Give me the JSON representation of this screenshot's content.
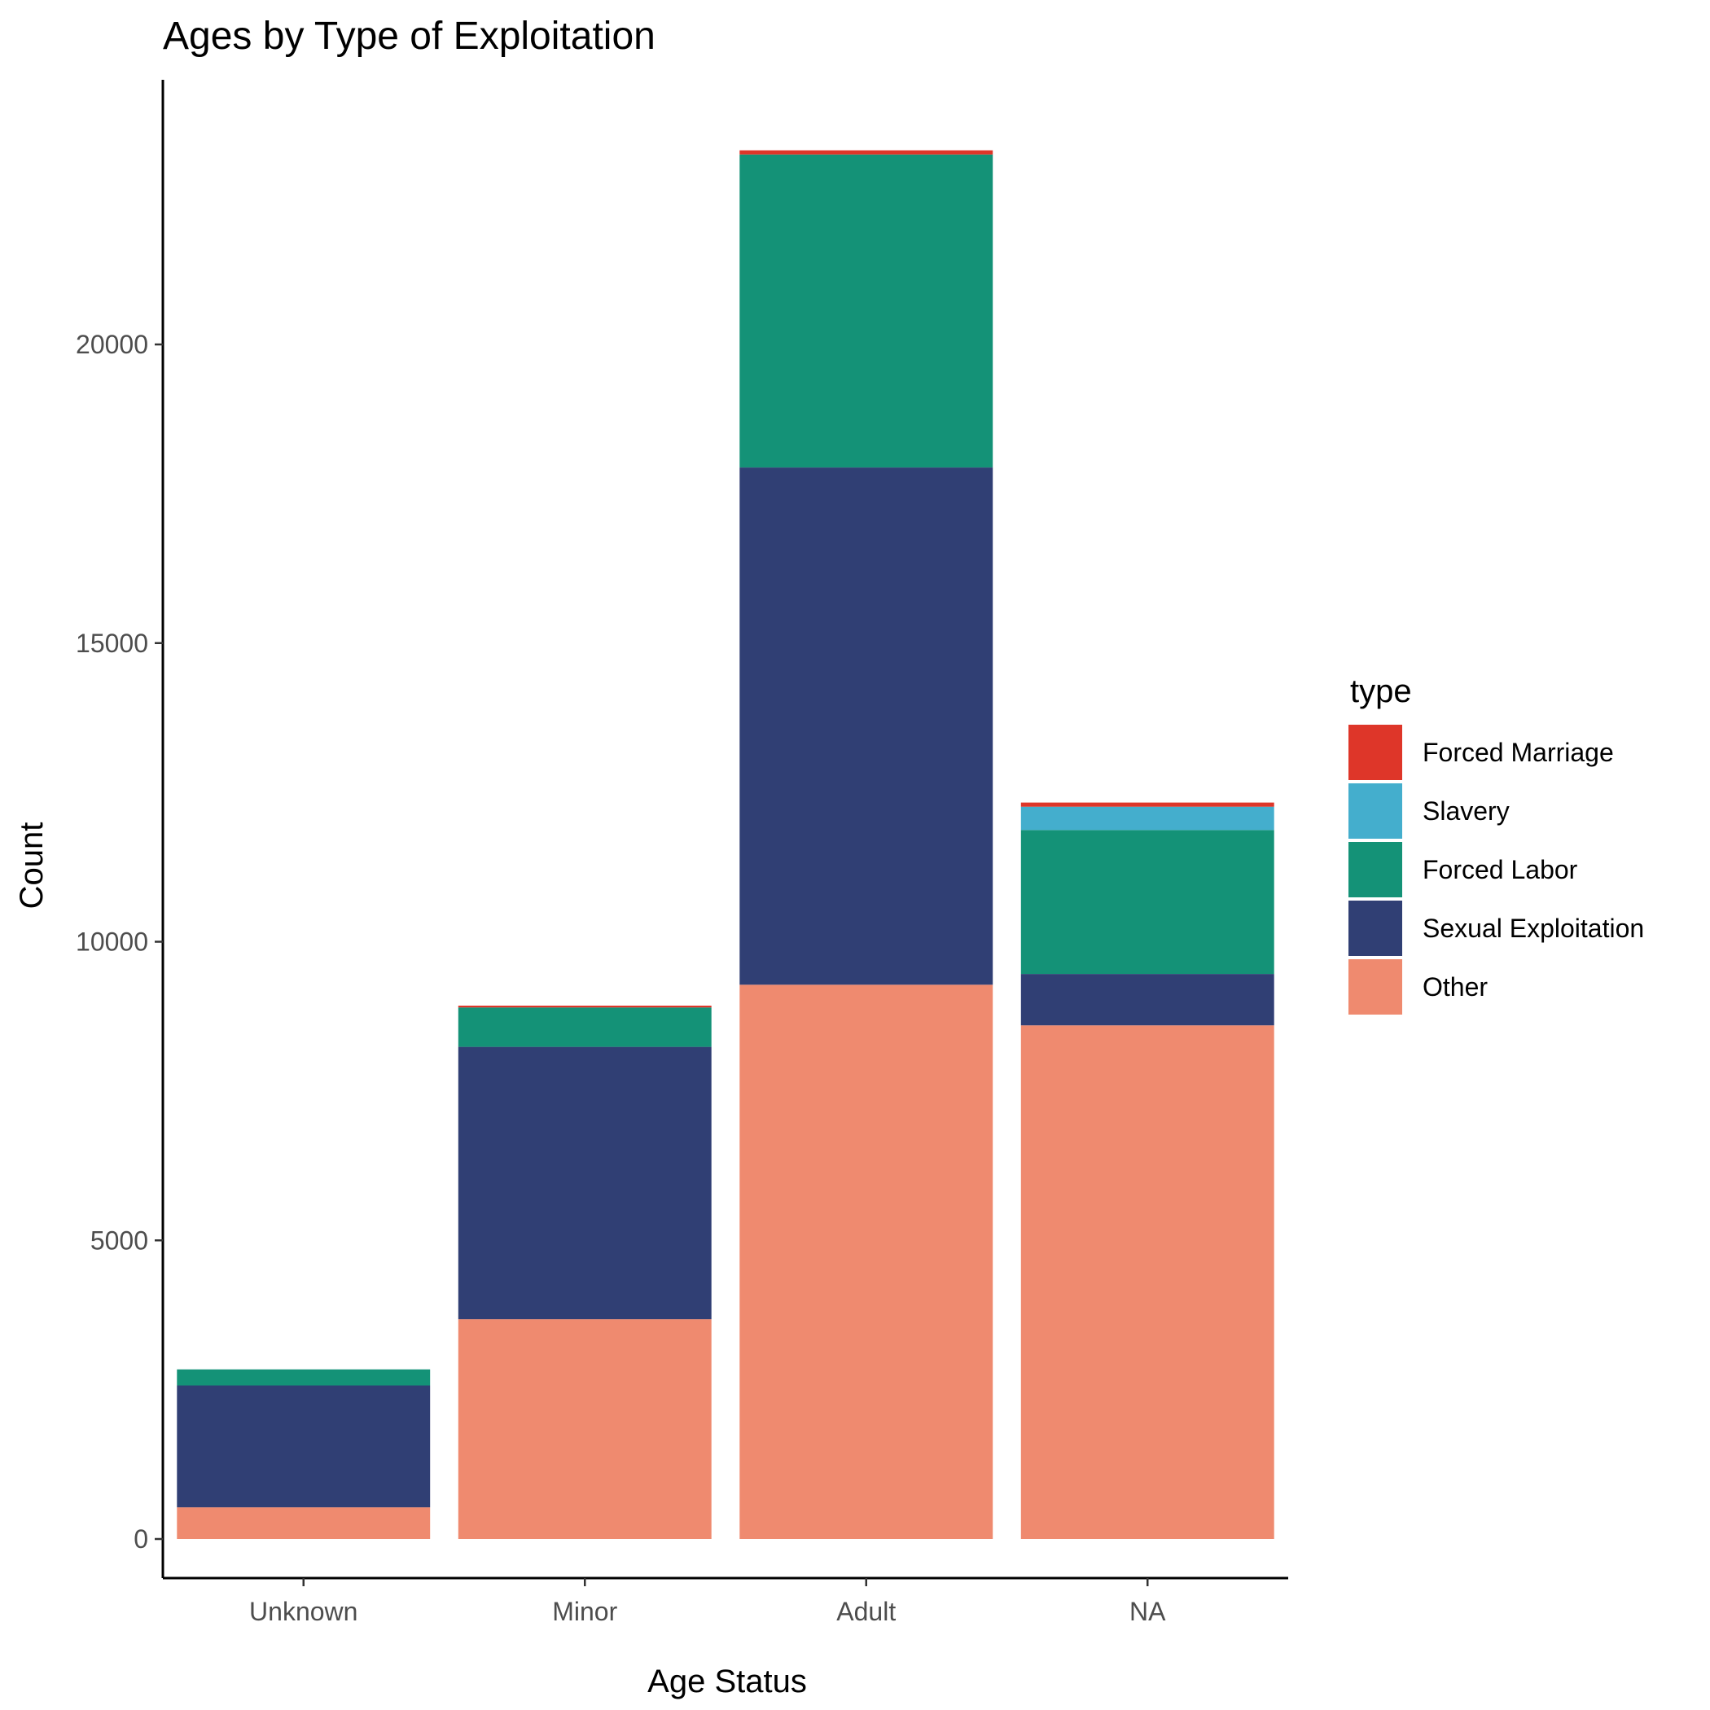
{
  "chart_data": {
    "type": "bar",
    "stacked": true,
    "title": "Ages by Type of Exploitation",
    "xlabel": "Age Status",
    "ylabel": "Count",
    "categories": [
      "Unknown",
      "Minor",
      "Adult",
      "NA"
    ],
    "ylim": [
      -1200,
      24500
    ],
    "yticks": [
      0,
      5000,
      10000,
      15000,
      20000
    ],
    "grid": false,
    "legend": {
      "title": "type",
      "position": "right"
    },
    "series": [
      {
        "name": "Other",
        "color": "#EF8A6F",
        "values": [
          530,
          3680,
          9280,
          8600
        ]
      },
      {
        "name": "Sexual Exploitation",
        "color": "#303F74",
        "values": [
          2040,
          4560,
          8660,
          860
        ]
      },
      {
        "name": "Forced Labor",
        "color": "#149277",
        "values": [
          270,
          660,
          5240,
          2410
        ]
      },
      {
        "name": "Slavery",
        "color": "#44AECD",
        "values": [
          0,
          0,
          0,
          390
        ]
      },
      {
        "name": "Forced Marriage",
        "color": "#DE3629",
        "values": [
          0,
          30,
          70,
          70
        ]
      }
    ],
    "legend_order": [
      "Forced Marriage",
      "Slavery",
      "Forced Labor",
      "Sexual Exploitation",
      "Other"
    ]
  }
}
